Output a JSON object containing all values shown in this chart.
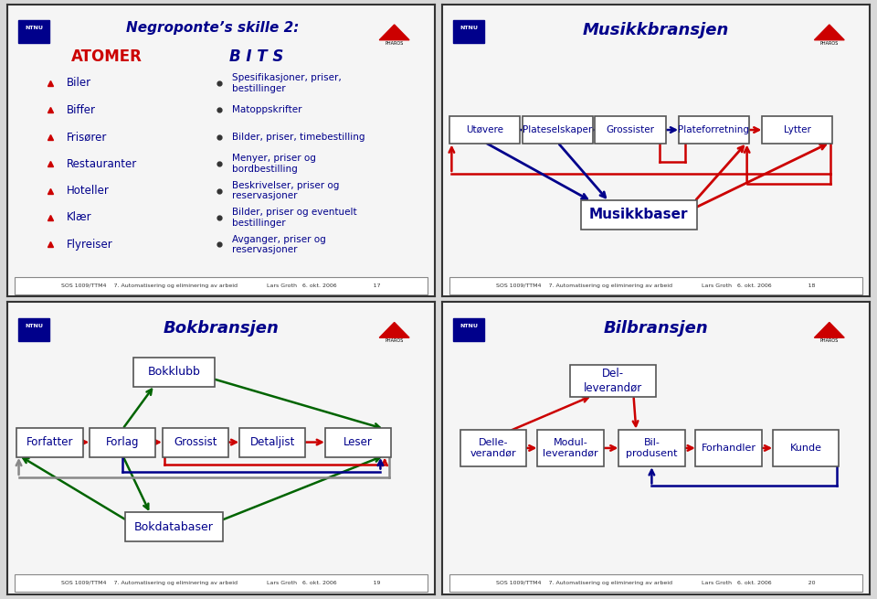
{
  "slide1": {
    "title": "Negroponte’s skille 2:",
    "col1_header": "ATOMER",
    "col2_header": "B I T S",
    "items": [
      [
        "Biler",
        "Spesifikasjoner, priser,\nbestillinger"
      ],
      [
        "Biffer",
        "Matoppskrifter"
      ],
      [
        "Frisører",
        "Bilder, priser, timebestilling"
      ],
      [
        "Restauranter",
        "Menyer, priser og\nbordbestilling"
      ],
      [
        "Hoteller",
        "Beskrivelser, priser og\nreservasjoner"
      ],
      [
        "Klær",
        "Bilder, priser og eventuelt\nbestillinger"
      ],
      [
        "Flyreiser",
        "Avganger, priser og\nreservasjoner"
      ]
    ],
    "footer": "SOS 1009/TTM4    7. Automatisering og eliminering av arbeid                Lars Groth   6. okt. 2006                    17"
  },
  "slide2": {
    "title": "Musikkbransjen",
    "nodes": [
      "Utøvere",
      "Plateselskaper",
      "Grossister",
      "Plateforretning",
      "Lytter"
    ],
    "musikkbaser": "Musikkbaser",
    "footer": "SOS 1009/TTM4    7. Automatisering og eliminering av arbeid                Lars Groth   6. okt. 2006                    18"
  },
  "slide3": {
    "title": "Bokbransjen",
    "nodes": [
      "Forfatter",
      "Forlag",
      "Grossist",
      "Detaljist",
      "Leser"
    ],
    "bokklubb": "Bokklubb",
    "bokdatabaser": "Bokdatabaser",
    "footer": "SOS 1009/TTM4    7. Automatisering og eliminering av arbeid                Lars Groth   6. okt. 2006                    19"
  },
  "slide4": {
    "title": "Bilbransjen",
    "top_node": "Del-\nleverandør",
    "nodes": [
      "Delle-\nverandør",
      "Modul-\nleverandør",
      "Bil-\nprodusent",
      "Forhandler",
      "Kunde"
    ],
    "footer": "SOS 1009/TTM4    7. Automatisering og eliminering av arbeid                Lars Groth   6. okt. 2006                    20"
  },
  "bg_color": "#d8d8d8",
  "slide_bg": "#f5f5f5",
  "border_color": "#000000",
  "title_color": "#00008B",
  "text_color": "#00008B",
  "dark_red": "#cc0000",
  "blue": "#00008B",
  "green": "#006400",
  "gray": "#888888",
  "pharos_red": "#cc0000"
}
